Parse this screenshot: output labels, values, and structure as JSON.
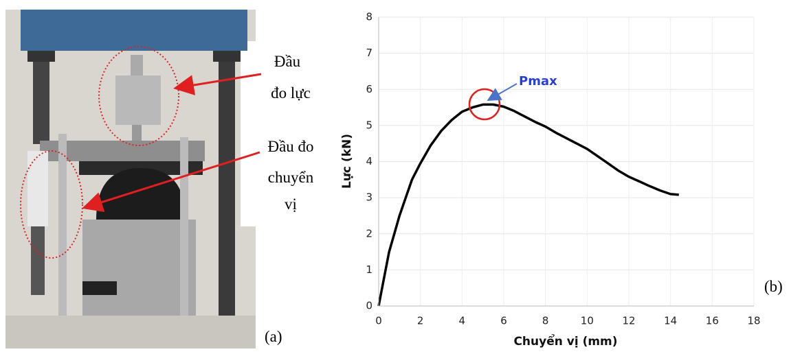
{
  "photo": {
    "labels": [
      "Đầu",
      "đo lực",
      "Đầu đo",
      "chuyển",
      "vị"
    ],
    "caption": "(a)"
  },
  "chart_data": {
    "type": "line",
    "caption": "(b)",
    "xlabel": "Chuyển vị (mm)",
    "ylabel": "Lực (kN)",
    "annotation": "Pmax",
    "color": "#000000",
    "x": [
      0,
      0.1,
      0.3,
      0.5,
      0.8,
      1.0,
      1.3,
      1.6,
      2.0,
      2.5,
      3.0,
      3.5,
      4.0,
      4.5,
      5.0,
      5.5,
      6.0,
      6.5,
      7.0,
      7.5,
      8.0,
      8.5,
      9.0,
      9.5,
      10.0,
      10.5,
      11.0,
      11.5,
      12.0,
      12.5,
      13.0,
      13.5,
      14.0,
      14.4
    ],
    "values": [
      0,
      0.3,
      0.9,
      1.5,
      2.1,
      2.5,
      3.0,
      3.5,
      3.95,
      4.45,
      4.85,
      5.15,
      5.38,
      5.5,
      5.58,
      5.58,
      5.52,
      5.4,
      5.25,
      5.1,
      4.97,
      4.8,
      4.65,
      4.5,
      4.35,
      4.15,
      3.95,
      3.75,
      3.58,
      3.45,
      3.32,
      3.2,
      3.1,
      3.08
    ],
    "xlim": [
      0,
      18
    ],
    "ylim": [
      0,
      8
    ],
    "xticks": [
      0,
      2,
      4,
      6,
      8,
      10,
      12,
      14,
      16,
      18
    ],
    "yticks": [
      0,
      1,
      2,
      3,
      4,
      5,
      6,
      7,
      8
    ],
    "grid": true
  }
}
